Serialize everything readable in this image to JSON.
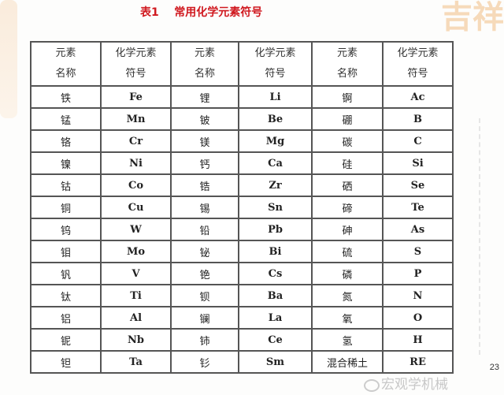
{
  "title": "表1    常用化学元素符号",
  "decoration_text": "吉祥",
  "headers": [
    "元素\n名称",
    "化学元素\n符号",
    "元素\n名称",
    "化学元素\n符号",
    "元素\n名称",
    "化学元素\n符号"
  ],
  "rows": [
    [
      "铁",
      "Fe",
      "锂",
      "Li",
      "锕",
      "Ac"
    ],
    [
      "锰",
      "Mn",
      "铍",
      "Be",
      "硼",
      "B"
    ],
    [
      "铬",
      "Cr",
      "镁",
      "Mg",
      "碳",
      "C"
    ],
    [
      "镍",
      "Ni",
      "钙",
      "Ca",
      "硅",
      "Si"
    ],
    [
      "钴",
      "Co",
      "锆",
      "Zr",
      "硒",
      "Se"
    ],
    [
      "铜",
      "Cu",
      "锡",
      "Sn",
      "碲",
      "Te"
    ],
    [
      "钨",
      "W",
      "铅",
      "Pb",
      "砷",
      "As"
    ],
    [
      "钼",
      "Mo",
      "铋",
      "Bi",
      "硫",
      "S"
    ],
    [
      "钒",
      "V",
      "铯",
      "Cs",
      "磷",
      "P"
    ],
    [
      "钛",
      "Ti",
      "钡",
      "Ba",
      "氮",
      "N"
    ],
    [
      "铝",
      "Al",
      "镧",
      "La",
      "氧",
      "O"
    ],
    [
      "铌",
      "Nb",
      "铈",
      "Ce",
      "氢",
      "H"
    ],
    [
      "钽",
      "Ta",
      "钐",
      "Sm",
      "混合稀土",
      "RE"
    ]
  ],
  "watermark": "宏观学机械",
  "page_number": "23",
  "colors": {
    "title": "#d0191f",
    "decoration": "#f4cfa5"
  }
}
